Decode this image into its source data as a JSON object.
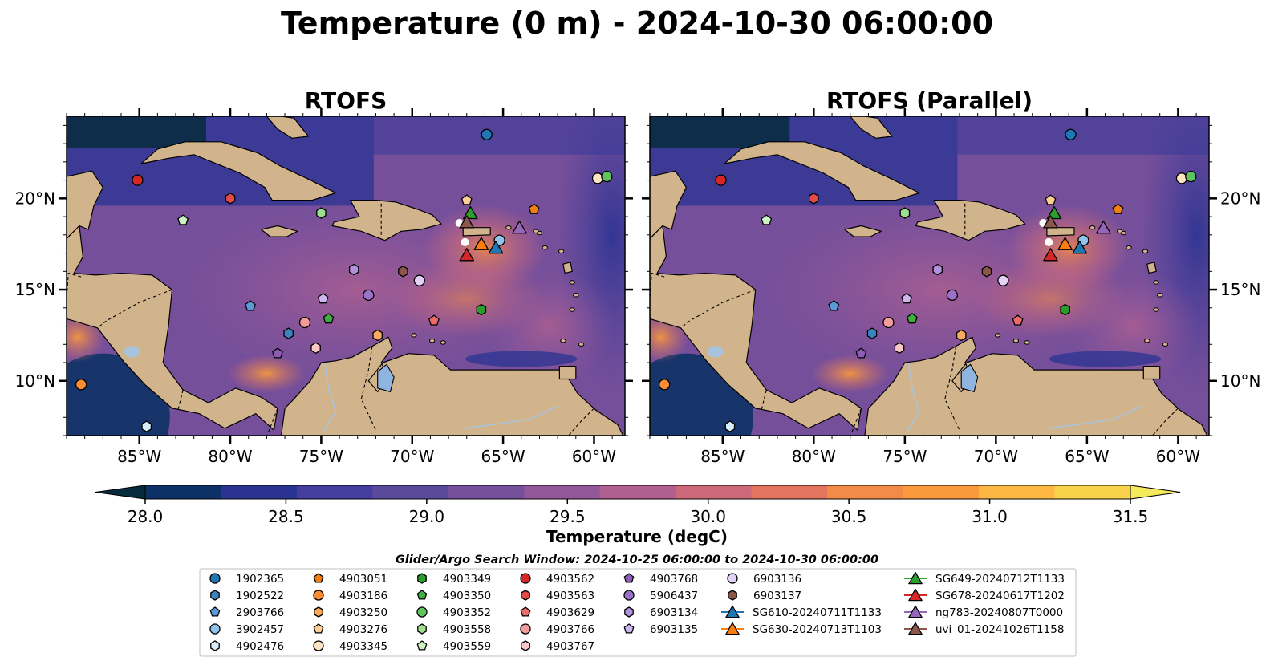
{
  "title": "Temperature (0 m) - 2024-10-30 06:00:00",
  "panels": [
    {
      "title": "RTOFS",
      "x_ticks": [
        "85°W",
        "80°W",
        "75°W",
        "70°W",
        "65°W",
        "60°W"
      ],
      "y_ticks": [
        "20°N",
        "15°N",
        "10°N"
      ],
      "y_tick_side": "left"
    },
    {
      "title": "RTOFS (Parallel)",
      "x_ticks": [
        "85°W",
        "80°W",
        "75°W",
        "70°W",
        "65°W",
        "60°W"
      ],
      "y_ticks": [
        "20°N",
        "15°N",
        "10°N"
      ],
      "y_tick_side": "right"
    }
  ],
  "colorbar": {
    "label": "Temperature (degC)",
    "ticks": [
      "28.0",
      "28.5",
      "29.0",
      "29.5",
      "30.0",
      "30.5",
      "31.0",
      "31.5"
    ],
    "colors": [
      "#062b3c",
      "#0d3166",
      "#2a3392",
      "#443e9e",
      "#5b4a9c",
      "#764f9a",
      "#93589a",
      "#b06090",
      "#cc6a7c",
      "#e3755e",
      "#f28a4a",
      "#fa9a3d",
      "#fdb844",
      "#f8d24a",
      "#f4ea5c"
    ],
    "extend": "both"
  },
  "legend": {
    "title": "Glider/Argo Search Window: 2024-10-25 06:00:00 to 2024-10-30 06:00:00",
    "columns": [
      [
        {
          "label": "1902365",
          "shape": "circle",
          "color": "#1f77b4"
        },
        {
          "label": "1902522",
          "shape": "hexagon",
          "color": "#3c84c0"
        },
        {
          "label": "2903766",
          "shape": "pentagon",
          "color": "#5a9ad6"
        },
        {
          "label": "3902457",
          "shape": "circle",
          "color": "#8fc4ec"
        },
        {
          "label": "4902476",
          "shape": "hexagon",
          "color": "#d7ecf8"
        }
      ],
      [
        {
          "label": "4903051",
          "shape": "pentagon",
          "color": "#f07f14"
        },
        {
          "label": "4903186",
          "shape": "circle",
          "color": "#fb8c36"
        },
        {
          "label": "4903250",
          "shape": "hexagon",
          "color": "#fcaa60"
        },
        {
          "label": "4903276",
          "shape": "pentagon",
          "color": "#fdcf98"
        },
        {
          "label": "4903345",
          "shape": "circle",
          "color": "#fde5c4"
        }
      ],
      [
        {
          "label": "4903349",
          "shape": "hexagon",
          "color": "#2a9e2a"
        },
        {
          "label": "4903350",
          "shape": "pentagon",
          "color": "#3fae3f"
        },
        {
          "label": "4903352",
          "shape": "circle",
          "color": "#5fc45c"
        },
        {
          "label": "4903558",
          "shape": "hexagon",
          "color": "#9ddf8f"
        },
        {
          "label": "4903559",
          "shape": "pentagon",
          "color": "#cbf2c0"
        }
      ],
      [
        {
          "label": "4903562",
          "shape": "circle",
          "color": "#d62728"
        },
        {
          "label": "4903563",
          "shape": "hexagon",
          "color": "#e44a47"
        },
        {
          "label": "4903629",
          "shape": "pentagon",
          "color": "#ee6b6c"
        },
        {
          "label": "4903766",
          "shape": "circle",
          "color": "#f49c9a"
        },
        {
          "label": "4903767",
          "shape": "hexagon",
          "color": "#f9c8c6"
        }
      ],
      [
        {
          "label": "4903768",
          "shape": "pentagon",
          "color": "#8c5cb8"
        },
        {
          "label": "5906437",
          "shape": "circle",
          "color": "#9a72c8"
        },
        {
          "label": "6903134",
          "shape": "hexagon",
          "color": "#b093dc"
        },
        {
          "label": "6903135",
          "shape": "pentagon",
          "color": "#cdb6f0"
        }
      ],
      [
        {
          "label": "6903136",
          "shape": "circle",
          "color": "#e4d1f6"
        },
        {
          "label": "6903137",
          "shape": "hexagon",
          "color": "#8c564b"
        },
        {
          "label": "SG610-20240711T1133",
          "shape": "triangle",
          "color": "#1f77b4"
        },
        {
          "label": "SG630-20240713T1103",
          "shape": "triangle",
          "color": "#ff7f0e"
        }
      ],
      [
        {
          "label": "SG649-20240712T1133",
          "shape": "triangle",
          "color": "#2ca02c"
        },
        {
          "label": "SG678-20240617T1202",
          "shape": "triangle",
          "color": "#d62728"
        },
        {
          "label": "ng783-20240807T0000",
          "shape": "triangle",
          "color": "#9467bd"
        },
        {
          "label": "uvi_01-20241026T1158",
          "shape": "triangle",
          "color": "#8c564b"
        }
      ]
    ]
  },
  "chart_data": [
    {
      "type": "map",
      "title": "RTOFS",
      "xlim": [
        -89,
        -58.3
      ],
      "ylim": [
        7,
        24.5
      ],
      "points": [
        {
          "id": "1902365",
          "lon": -65.9,
          "lat": 23.5
        },
        {
          "id": "4903051",
          "lon": -63.3,
          "lat": 19.4
        },
        {
          "id": "4903186",
          "lon": -88.2,
          "lat": 9.8
        },
        {
          "id": "4903250",
          "lon": -71.9,
          "lat": 12.5
        },
        {
          "id": "4903276",
          "lon": -67,
          "lat": 19.9
        },
        {
          "id": "4903345",
          "lon": -59.8,
          "lat": 21.1
        },
        {
          "id": "4903349",
          "lon": -66.2,
          "lat": 13.9
        },
        {
          "id": "4903350",
          "lon": -74.6,
          "lat": 13.4
        },
        {
          "id": "4903352",
          "lon": -59.3,
          "lat": 21.2
        },
        {
          "id": "4903558",
          "lon": -75,
          "lat": 19.2
        },
        {
          "id": "4903559",
          "lon": -82.6,
          "lat": 18.8
        },
        {
          "id": "4903562",
          "lon": -85.1,
          "lat": 21
        },
        {
          "id": "4903563",
          "lon": -80,
          "lat": 20
        },
        {
          "id": "4903629",
          "lon": -68.8,
          "lat": 13.3
        },
        {
          "id": "4903766",
          "lon": -75.9,
          "lat": 13.2
        },
        {
          "id": "4903767",
          "lon": -75.3,
          "lat": 11.8
        },
        {
          "id": "2903766",
          "lon": -78.9,
          "lat": 14.1
        },
        {
          "id": "1902522",
          "lon": -76.8,
          "lat": 12.6
        },
        {
          "id": "3902457",
          "lon": -65.2,
          "lat": 17.7
        },
        {
          "id": "4902476",
          "lon": -84.6,
          "lat": 7.5
        },
        {
          "id": "4903768",
          "lon": -77.4,
          "lat": 11.5
        },
        {
          "id": "5906437",
          "lon": -72.4,
          "lat": 14.7
        },
        {
          "id": "6903134",
          "lon": -73.2,
          "lat": 16.1
        },
        {
          "id": "6903135",
          "lon": -74.9,
          "lat": 14.5
        },
        {
          "id": "6903136",
          "lon": -69.6,
          "lat": 15.5
        },
        {
          "id": "6903137",
          "lon": -70.5,
          "lat": 16
        },
        {
          "id": "SG610-20240711T1133",
          "lon": -65.4,
          "lat": 17.3
        },
        {
          "id": "SG630-20240713T1103",
          "lon": -66.2,
          "lat": 17.5
        },
        {
          "id": "SG649-20240712T1133",
          "lon": -66.8,
          "lat": 19.2
        },
        {
          "id": "SG678-20240617T1202",
          "lon": -67,
          "lat": 16.9
        },
        {
          "id": "ng783-20240807T0000",
          "lon": -64.1,
          "lat": 18.4
        },
        {
          "id": "uvi_01-20241026T1158",
          "lon": -67,
          "lat": 18.7
        }
      ]
    },
    {
      "type": "map",
      "title": "RTOFS (Parallel)",
      "xlim": [
        -89,
        -58.3
      ],
      "ylim": [
        7,
        24.5
      ],
      "points": "same as RTOFS panel"
    }
  ]
}
